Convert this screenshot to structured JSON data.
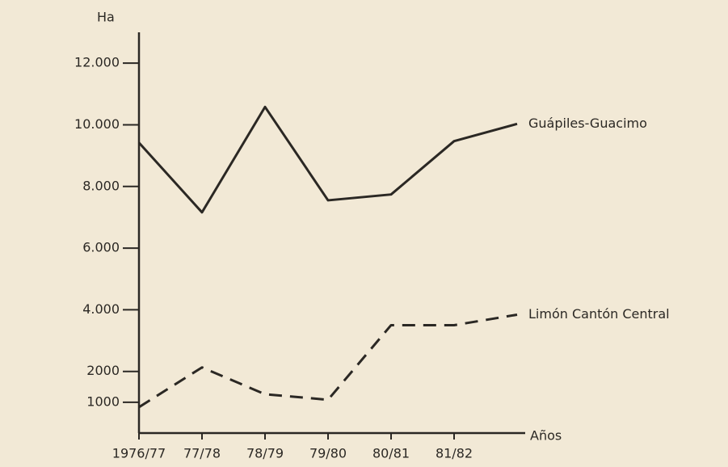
{
  "chart_data": {
    "type": "line",
    "y_label": "Ha",
    "x_label": "Años",
    "categories": [
      "1976/77",
      "77/78",
      "78/79",
      "79/80",
      "80/81",
      "81/82",
      null
    ],
    "series": [
      {
        "name": "Guápiles-Guacimo",
        "color": "#2b2824",
        "dash": "solid",
        "values": [
          9420,
          7160,
          10580,
          7550,
          7740,
          9470,
          10030
        ]
      },
      {
        "name": "Limón Cantón Central",
        "color": "#2b2824",
        "dash": "dashed",
        "values": [
          840,
          2130,
          1260,
          1080,
          3500,
          3500,
          3840
        ]
      }
    ],
    "ylim": [
      0,
      13000
    ],
    "yticks": [
      1000,
      2000,
      {
        "value": 4000,
        "label": "4.000"
      },
      {
        "value": 6000,
        "label": "6.000"
      },
      {
        "value": 8000,
        "label": "8.000"
      },
      {
        "value": 10000,
        "label": "10.000"
      },
      {
        "value": 12000,
        "label": "12.000"
      }
    ]
  }
}
